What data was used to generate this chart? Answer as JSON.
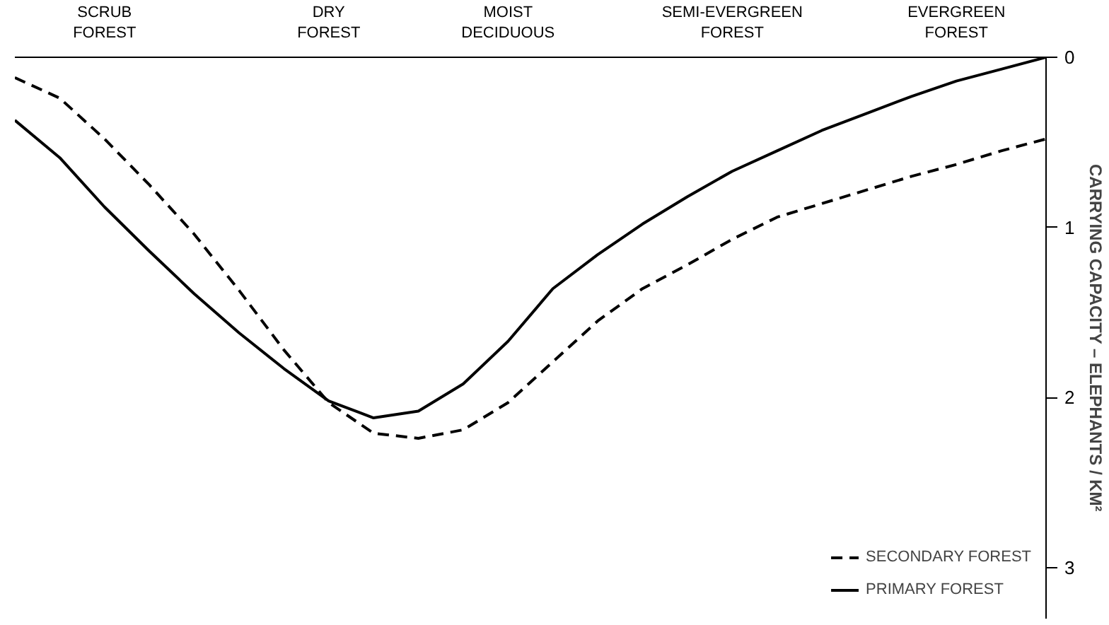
{
  "chart_data": {
    "type": "line",
    "ylabel": "CARRYING CAPACITY – ELEPHANTS / KM²",
    "ylim": [
      3.3,
      0
    ],
    "yticks": [
      0,
      1,
      2,
      3
    ],
    "grid": false,
    "legend": "bottom right",
    "categories": [
      null,
      null,
      "SCRUB\nFOREST",
      null,
      null,
      null,
      null,
      "DRY\nFOREST",
      null,
      null,
      null,
      "MOIST\nDECIDUOUS",
      null,
      null,
      null,
      null,
      "SEMI-EVERGREEN\nFOREST",
      null,
      null,
      null,
      null,
      "EVERGREEN\nFOREST",
      null,
      null
    ],
    "series": [
      {
        "name": "PRIMARY FOREST",
        "color": "#000000",
        "line_style": "solid",
        "values": [
          0.37,
          0.59,
          0.88,
          1.14,
          1.39,
          1.62,
          1.83,
          2.02,
          2.12,
          2.08,
          1.92,
          1.67,
          1.36,
          1.16,
          0.98,
          0.82,
          0.67,
          0.55,
          0.43,
          0.33,
          0.23,
          0.14,
          0.07,
          0
        ]
      },
      {
        "name": "SECONDARY FOREST",
        "color": "#000000",
        "line_style": "dashed",
        "values": [
          0.12,
          0.24,
          0.48,
          0.75,
          1.04,
          1.37,
          1.72,
          2.03,
          2.21,
          2.24,
          2.19,
          2.03,
          1.79,
          1.55,
          1.36,
          1.22,
          1.07,
          0.94,
          0.86,
          0.78,
          0.7,
          0.63,
          0.55,
          0.48
        ]
      }
    ]
  }
}
